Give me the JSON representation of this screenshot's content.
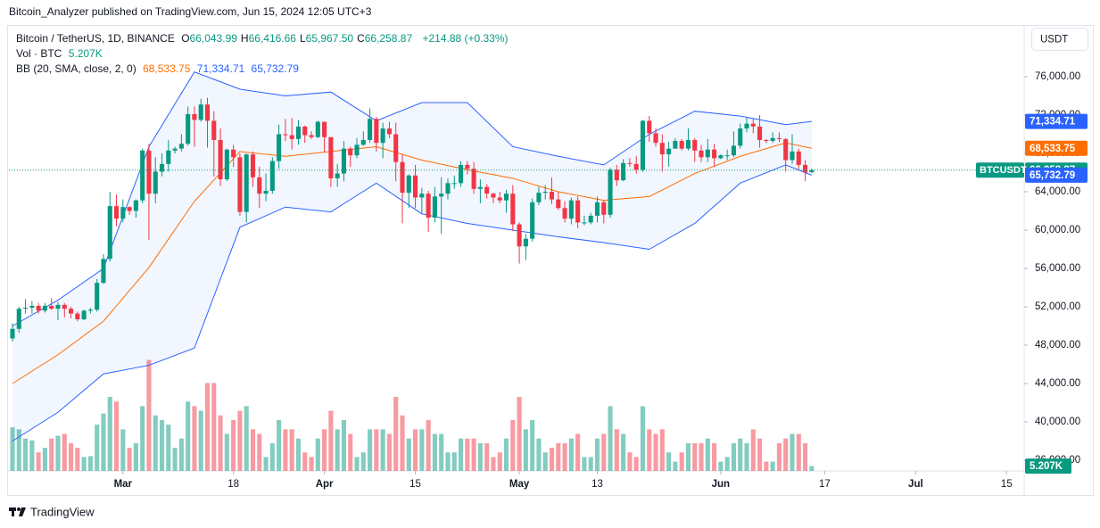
{
  "header": {
    "publisher": "Bitcoin_Analyzer published on TradingView.com, Jun 15, 2024 12:05 UTC+3"
  },
  "legend": {
    "symbol": "Bitcoin / TetherUS, 1D, BINANCE",
    "ohlc": [
      {
        "key": "O",
        "text": "66,043.99"
      },
      {
        "key": "H",
        "text": "66,416.66"
      },
      {
        "key": "L",
        "text": "65,967.50"
      },
      {
        "key": "C",
        "text": "66,258.87"
      }
    ],
    "change": "+214.88 (+0.33%)",
    "volume_title": "Vol · BTC",
    "bb_title": "BB (20, SMA, close, 2, 0)"
  },
  "currency_button": "USDT",
  "footer": "TradingView",
  "chart_data": {
    "type": "candlestick",
    "up_color": "#089981",
    "down_color": "#f23645",
    "volume_up_color": "rgba(8,153,129,0.5)",
    "volume_down_color": "rgba(242,54,69,0.5)",
    "xlim": [
      -0.55,
      155.7
    ],
    "ylim": [
      34884,
      81209
    ],
    "volume_ylim": [
      0,
      480000
    ],
    "xticks": [
      {
        "value": 17,
        "label": "Mar"
      },
      {
        "value": 34,
        "label": "18"
      },
      {
        "value": 48,
        "label": "Apr"
      },
      {
        "value": 62,
        "label": "15"
      },
      {
        "value": 78,
        "label": "May"
      },
      {
        "value": 90,
        "label": "13"
      },
      {
        "value": 109,
        "label": "Jun"
      },
      {
        "value": 125,
        "label": "17"
      },
      {
        "value": 139,
        "label": "Jul"
      },
      {
        "value": 153,
        "label": "15"
      }
    ],
    "yticks": [
      {
        "value": 36000,
        "label": "36,000.00"
      },
      {
        "value": 40000,
        "label": "40,000.00"
      },
      {
        "value": 44000,
        "label": "44,000.00"
      },
      {
        "value": 48000,
        "label": "48,000.00"
      },
      {
        "value": 52000,
        "label": "52,000.00"
      },
      {
        "value": 56000,
        "label": "56,000.00"
      },
      {
        "value": 60000,
        "label": "60,000.00"
      },
      {
        "value": 64000,
        "label": "64,000.00"
      },
      {
        "value": 68000,
        "label": "68,000.00"
      },
      {
        "value": 72000,
        "label": "72,000.00"
      },
      {
        "value": 76000,
        "label": "76,000.00"
      }
    ],
    "open": [
      48700,
      49700,
      51800,
      51900,
      52100,
      51600,
      52100,
      51800,
      52200,
      51800,
      51300,
      50700,
      51600,
      51700,
      54500,
      57000,
      62500,
      61200,
      62400,
      62000,
      63100,
      68300,
      63800,
      66100,
      66900,
      68300,
      68500,
      69000,
      72100,
      71500,
      73100,
      71400,
      69400,
      65300,
      68400,
      67600,
      61900,
      67900,
      65500,
      63800,
      64100,
      67200,
      70000,
      69900,
      69500,
      70800,
      69900,
      69700,
      71300,
      69700,
      65400,
      65900,
      68500,
      67800,
      68900,
      69400,
      71600,
      69100,
      70600,
      70000,
      67100,
      63900,
      65700,
      63400,
      63800,
      61300,
      63500,
      63800,
      64900,
      64900,
      66800,
      66400,
      64300,
      64500,
      63800,
      63400,
      63100,
      63800,
      60600,
      58300,
      59100,
      62900,
      63900,
      64000,
      63200,
      62300,
      61200,
      63100,
      60800,
      60800,
      61500,
      62900,
      61600,
      66300,
      65200,
      67000,
      66900,
      66300,
      71400,
      70100,
      69100,
      67900,
      68500,
      69300,
      68500,
      69400,
      68300,
      67600,
      68400,
      67500,
      67800,
      67800,
      68800,
      70600,
      71100,
      70800,
      69400,
      69300,
      69600,
      69500,
      67300,
      68200,
      66800,
      66043.99
    ],
    "high": [
      50300,
      52000,
      52800,
      52600,
      52400,
      52400,
      52900,
      52500,
      52400,
      52000,
      51500,
      51700,
      51900,
      54900,
      57500,
      64000,
      63700,
      63200,
      62500,
      63200,
      68500,
      69000,
      67600,
      68000,
      69400,
      68700,
      70000,
      72900,
      72900,
      73700,
      73800,
      72400,
      70600,
      68500,
      68900,
      68000,
      68000,
      68200,
      66600,
      65900,
      67600,
      71000,
      71600,
      71700,
      71500,
      70900,
      70300,
      71400,
      71300,
      69700,
      66900,
      69300,
      68700,
      69600,
      70300,
      72700,
      71800,
      71200,
      71300,
      71200,
      67900,
      65800,
      66800,
      64400,
      64100,
      64500,
      65500,
      65400,
      65700,
      67200,
      67200,
      67100,
      65300,
      64800,
      63900,
      64000,
      64200,
      64700,
      60800,
      59600,
      63300,
      64500,
      64700,
      65500,
      64000,
      63000,
      63400,
      63500,
      61500,
      61800,
      63500,
      63100,
      66500,
      66800,
      67400,
      67500,
      67700,
      71500,
      71900,
      70600,
      70000,
      69200,
      69600,
      69500,
      70600,
      69600,
      68900,
      69500,
      69000,
      67900,
      68400,
      70300,
      71100,
      71800,
      71600,
      72000,
      69500,
      70200,
      70200,
      69600,
      70000,
      68500,
      67300,
      66416.66
    ],
    "low": [
      48400,
      49300,
      51300,
      51300,
      51300,
      51400,
      51700,
      50600,
      50900,
      50800,
      50500,
      50600,
      51300,
      51500,
      54400,
      56700,
      60400,
      60800,
      61600,
      61300,
      62800,
      59000,
      62800,
      65600,
      66100,
      68000,
      68200,
      68800,
      68700,
      71300,
      68600,
      65600,
      64600,
      65100,
      66600,
      61500,
      60800,
      64500,
      62300,
      63000,
      63800,
      66400,
      69300,
      68400,
      68900,
      69100,
      69500,
      69600,
      68100,
      64500,
      64500,
      65100,
      66600,
      67500,
      68800,
      69100,
      68200,
      67500,
      69600,
      65100,
      60700,
      62300,
      62300,
      61800,
      59800,
      60800,
      59600,
      63200,
      64300,
      64500,
      65800,
      63800,
      62800,
      63300,
      62800,
      62800,
      61800,
      59900,
      56500,
      56900,
      58800,
      62600,
      63200,
      62700,
      62100,
      60800,
      60600,
      60200,
      60500,
      60600,
      60800,
      60700,
      61300,
      64600,
      65100,
      66600,
      65900,
      66100,
      69200,
      68700,
      66100,
      66600,
      68500,
      68300,
      68300,
      67100,
      67100,
      67100,
      66600,
      67400,
      67300,
      67600,
      68500,
      70200,
      70100,
      68600,
      69100,
      69100,
      69200,
      66100,
      66900,
      66300,
      65100,
      65967.5
    ],
    "close": [
      49700,
      51800,
      51900,
      52100,
      51600,
      52100,
      51800,
      52200,
      51800,
      51300,
      50700,
      51600,
      51700,
      54500,
      57000,
      62500,
      61200,
      62400,
      62000,
      63100,
      68300,
      63800,
      66100,
      66900,
      68300,
      68500,
      69000,
      72100,
      71500,
      73100,
      71400,
      69400,
      65300,
      68400,
      67600,
      61900,
      67900,
      65500,
      63800,
      64100,
      67200,
      70000,
      69900,
      69500,
      70800,
      69900,
      69700,
      71300,
      69700,
      65400,
      65900,
      68500,
      67800,
      68900,
      69400,
      71600,
      69100,
      70600,
      70000,
      67100,
      63900,
      65700,
      63400,
      63800,
      61300,
      63500,
      63800,
      64900,
      64900,
      66800,
      66400,
      64300,
      64500,
      63800,
      63400,
      63100,
      63800,
      60600,
      58300,
      59100,
      62900,
      63900,
      64000,
      63200,
      62300,
      61200,
      63100,
      60800,
      60800,
      61500,
      62900,
      61600,
      66300,
      65200,
      67000,
      66900,
      66300,
      71400,
      70100,
      69100,
      67900,
      68500,
      69300,
      68500,
      69400,
      68300,
      67600,
      68400,
      67500,
      67800,
      67800,
      68800,
      70600,
      71100,
      70800,
      69400,
      69300,
      69600,
      69500,
      67300,
      68200,
      66800,
      66000,
      66258.87
    ],
    "volume": [
      47000,
      45000,
      35000,
      33000,
      20000,
      25000,
      35000,
      38000,
      40000,
      30000,
      25000,
      15000,
      16000,
      50000,
      62000,
      80000,
      75000,
      45000,
      25000,
      30000,
      70000,
      120000,
      60000,
      55000,
      50000,
      25000,
      35000,
      75000,
      70000,
      65000,
      95000,
      95000,
      60000,
      40000,
      55000,
      65000,
      70000,
      45000,
      40000,
      15000,
      30000,
      55000,
      45000,
      45000,
      35000,
      20000,
      15000,
      35000,
      45000,
      65000,
      45000,
      55000,
      40000,
      15000,
      20000,
      45000,
      45000,
      45000,
      40000,
      80000,
      60000,
      35000,
      45000,
      45000,
      55000,
      40000,
      40000,
      20000,
      20000,
      35000,
      35000,
      35000,
      30000,
      30000,
      15000,
      20000,
      35000,
      55000,
      80000,
      45000,
      55000,
      35000,
      20000,
      25000,
      30000,
      30000,
      35000,
      40000,
      15000,
      15000,
      35000,
      40000,
      70000,
      45000,
      40000,
      20000,
      15000,
      70000,
      45000,
      40000,
      45000,
      20000,
      10000,
      20000,
      30000,
      30000,
      30000,
      35000,
      30000,
      10000,
      15000,
      30000,
      35000,
      30000,
      45000,
      35000,
      10000,
      10000,
      30000,
      35000,
      40000,
      40000,
      30000,
      5207
    ],
    "bands": {
      "x": [
        0,
        7,
        14,
        21,
        28,
        35,
        42,
        49,
        56,
        63,
        70,
        77,
        84,
        91,
        98,
        105,
        112,
        119,
        123
      ],
      "fill": "rgba(41,98,255,0.06)",
      "upper": {
        "color": "#2962ff",
        "values": [
          50000,
          52700,
          56000,
          68700,
          76500,
          74700,
          74000,
          74400,
          71400,
          73300,
          73300,
          68700,
          67700,
          66800,
          70000,
          72400,
          71900,
          71000,
          71334.71
        ]
      },
      "basis": {
        "color": "#ff6d00",
        "values": [
          44000,
          47000,
          50500,
          56100,
          63000,
          68200,
          67700,
          68200,
          68700,
          67300,
          66300,
          65400,
          64000,
          63100,
          63500,
          65900,
          67700,
          69100,
          68533.75
        ]
      },
      "lower": {
        "color": "#2962ff",
        "values": [
          38000,
          41000,
          45000,
          45900,
          47700,
          60300,
          62400,
          61900,
          64900,
          61700,
          60700,
          60000,
          59300,
          58700,
          58000,
          60700,
          64900,
          66800,
          65732.79
        ]
      }
    },
    "price_labels": [
      {
        "value": 71334.71,
        "label": "71,334.71",
        "color": "#2962ff"
      },
      {
        "value": 68533.75,
        "label": "68,533.75",
        "color": "#ff6d00"
      },
      {
        "value": 66258.87,
        "label": "66,258.87",
        "color": "#089981"
      },
      {
        "value": 65732.79,
        "label": "65,732.79",
        "color": "#2962ff"
      }
    ],
    "symbol_badge": "BTCUSDT",
    "volume_label": {
      "value": 5207,
      "label": "5.207K",
      "color": "#089981"
    }
  }
}
